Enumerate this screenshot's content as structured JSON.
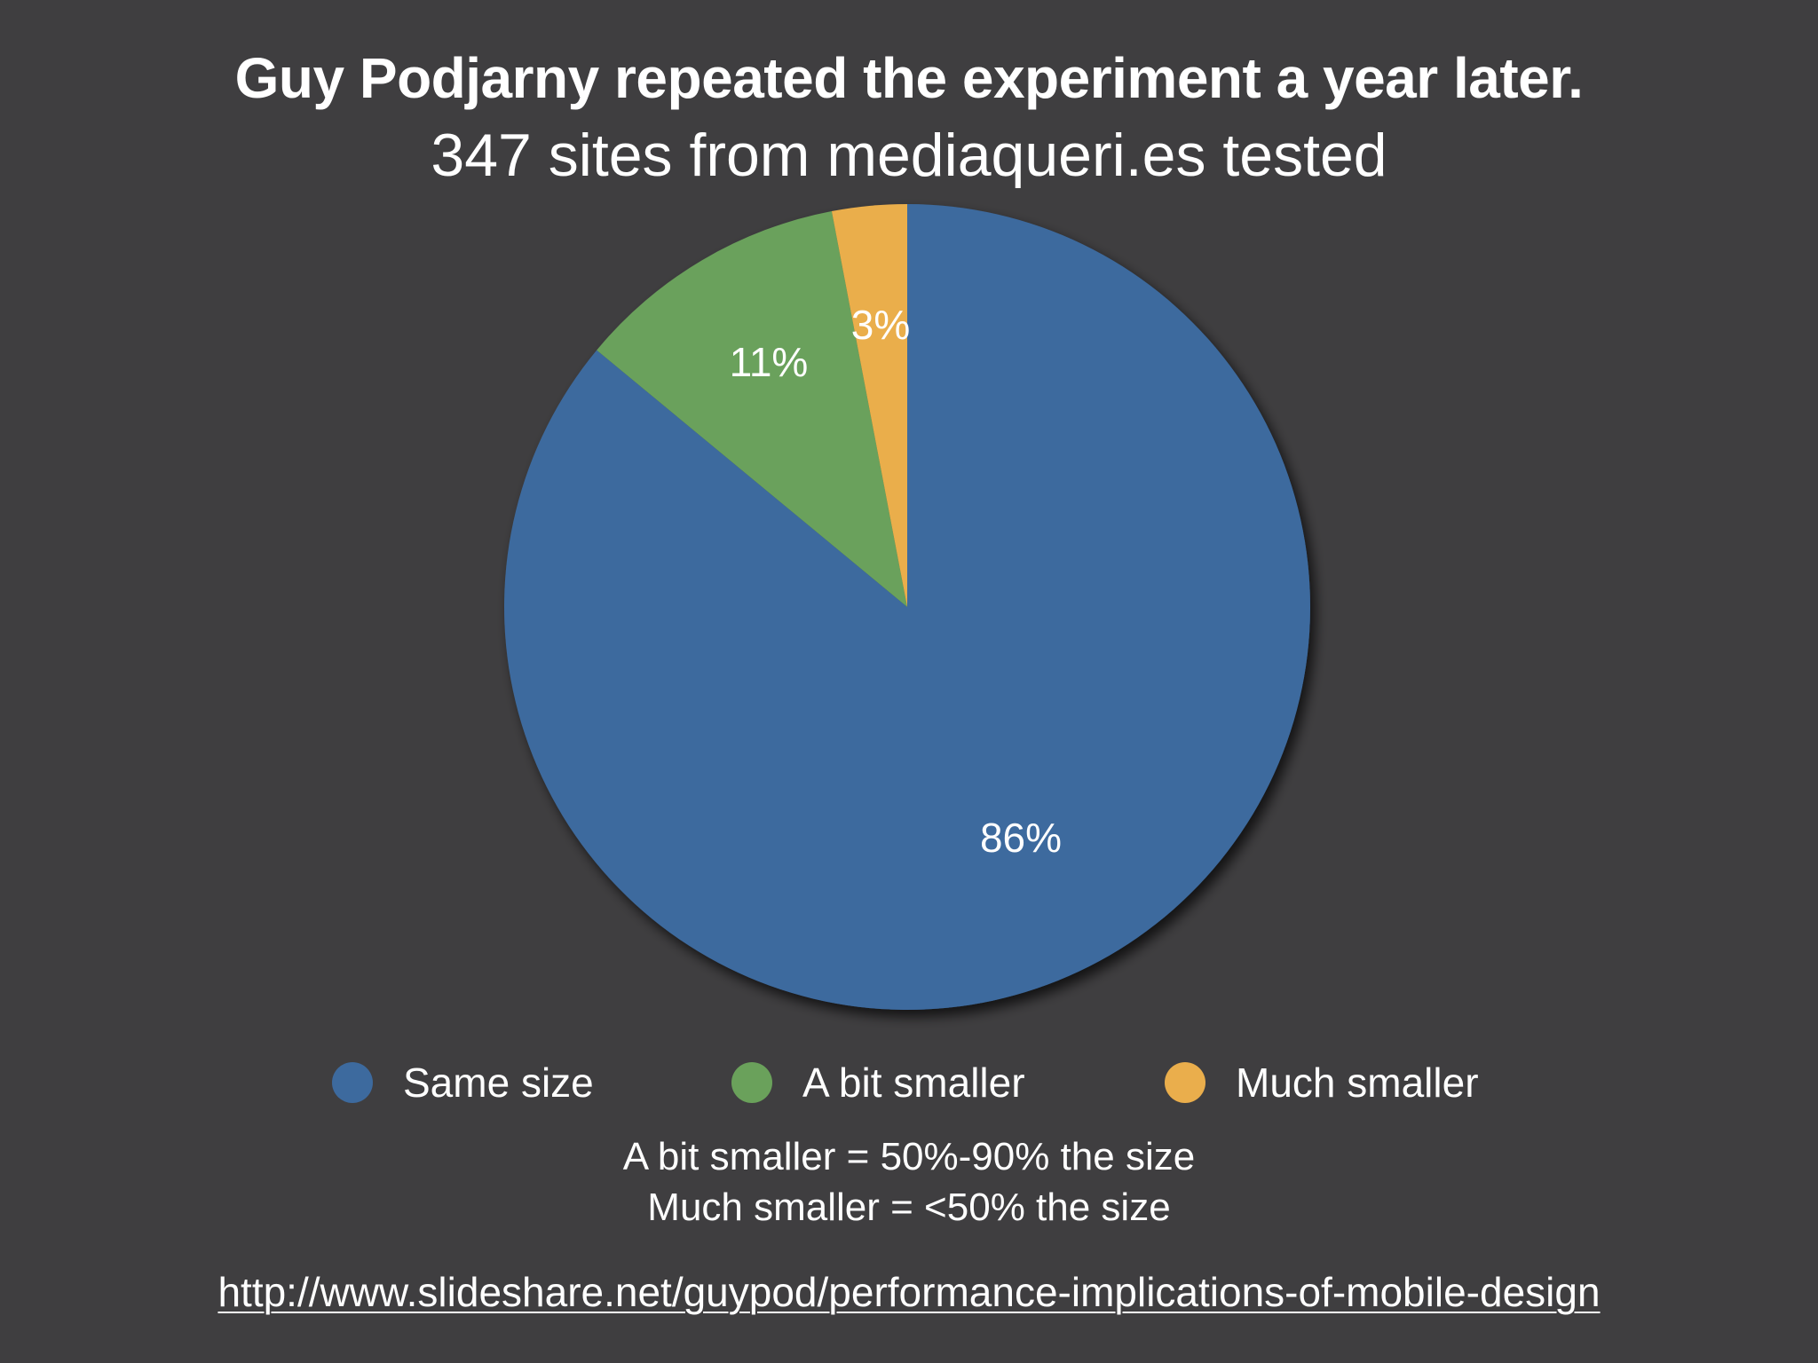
{
  "slide": {
    "title": "Guy Podjarny repeated the experiment a year later.",
    "subtitle": "347 sites from mediaqueri.es tested",
    "note_line_1": "A bit smaller = 50%-90% the size",
    "note_line_2": "Much smaller = <50% the size",
    "source_url": "http://www.slideshare.net/guypod/performance-implications-of-mobile-design",
    "background_color": "#3f3e40"
  },
  "chart_data": {
    "type": "pie",
    "title": "",
    "legend_position": "bottom",
    "categories": [
      "Same size",
      "A bit smaller",
      "Much smaller"
    ],
    "values": [
      86,
      11,
      3
    ],
    "labels": [
      "86%",
      "11%",
      "3%"
    ],
    "colors": [
      "#3d6a9e",
      "#6aa15b",
      "#eaae4c"
    ],
    "start_angle_deg": 0,
    "direction": "clockwise"
  }
}
